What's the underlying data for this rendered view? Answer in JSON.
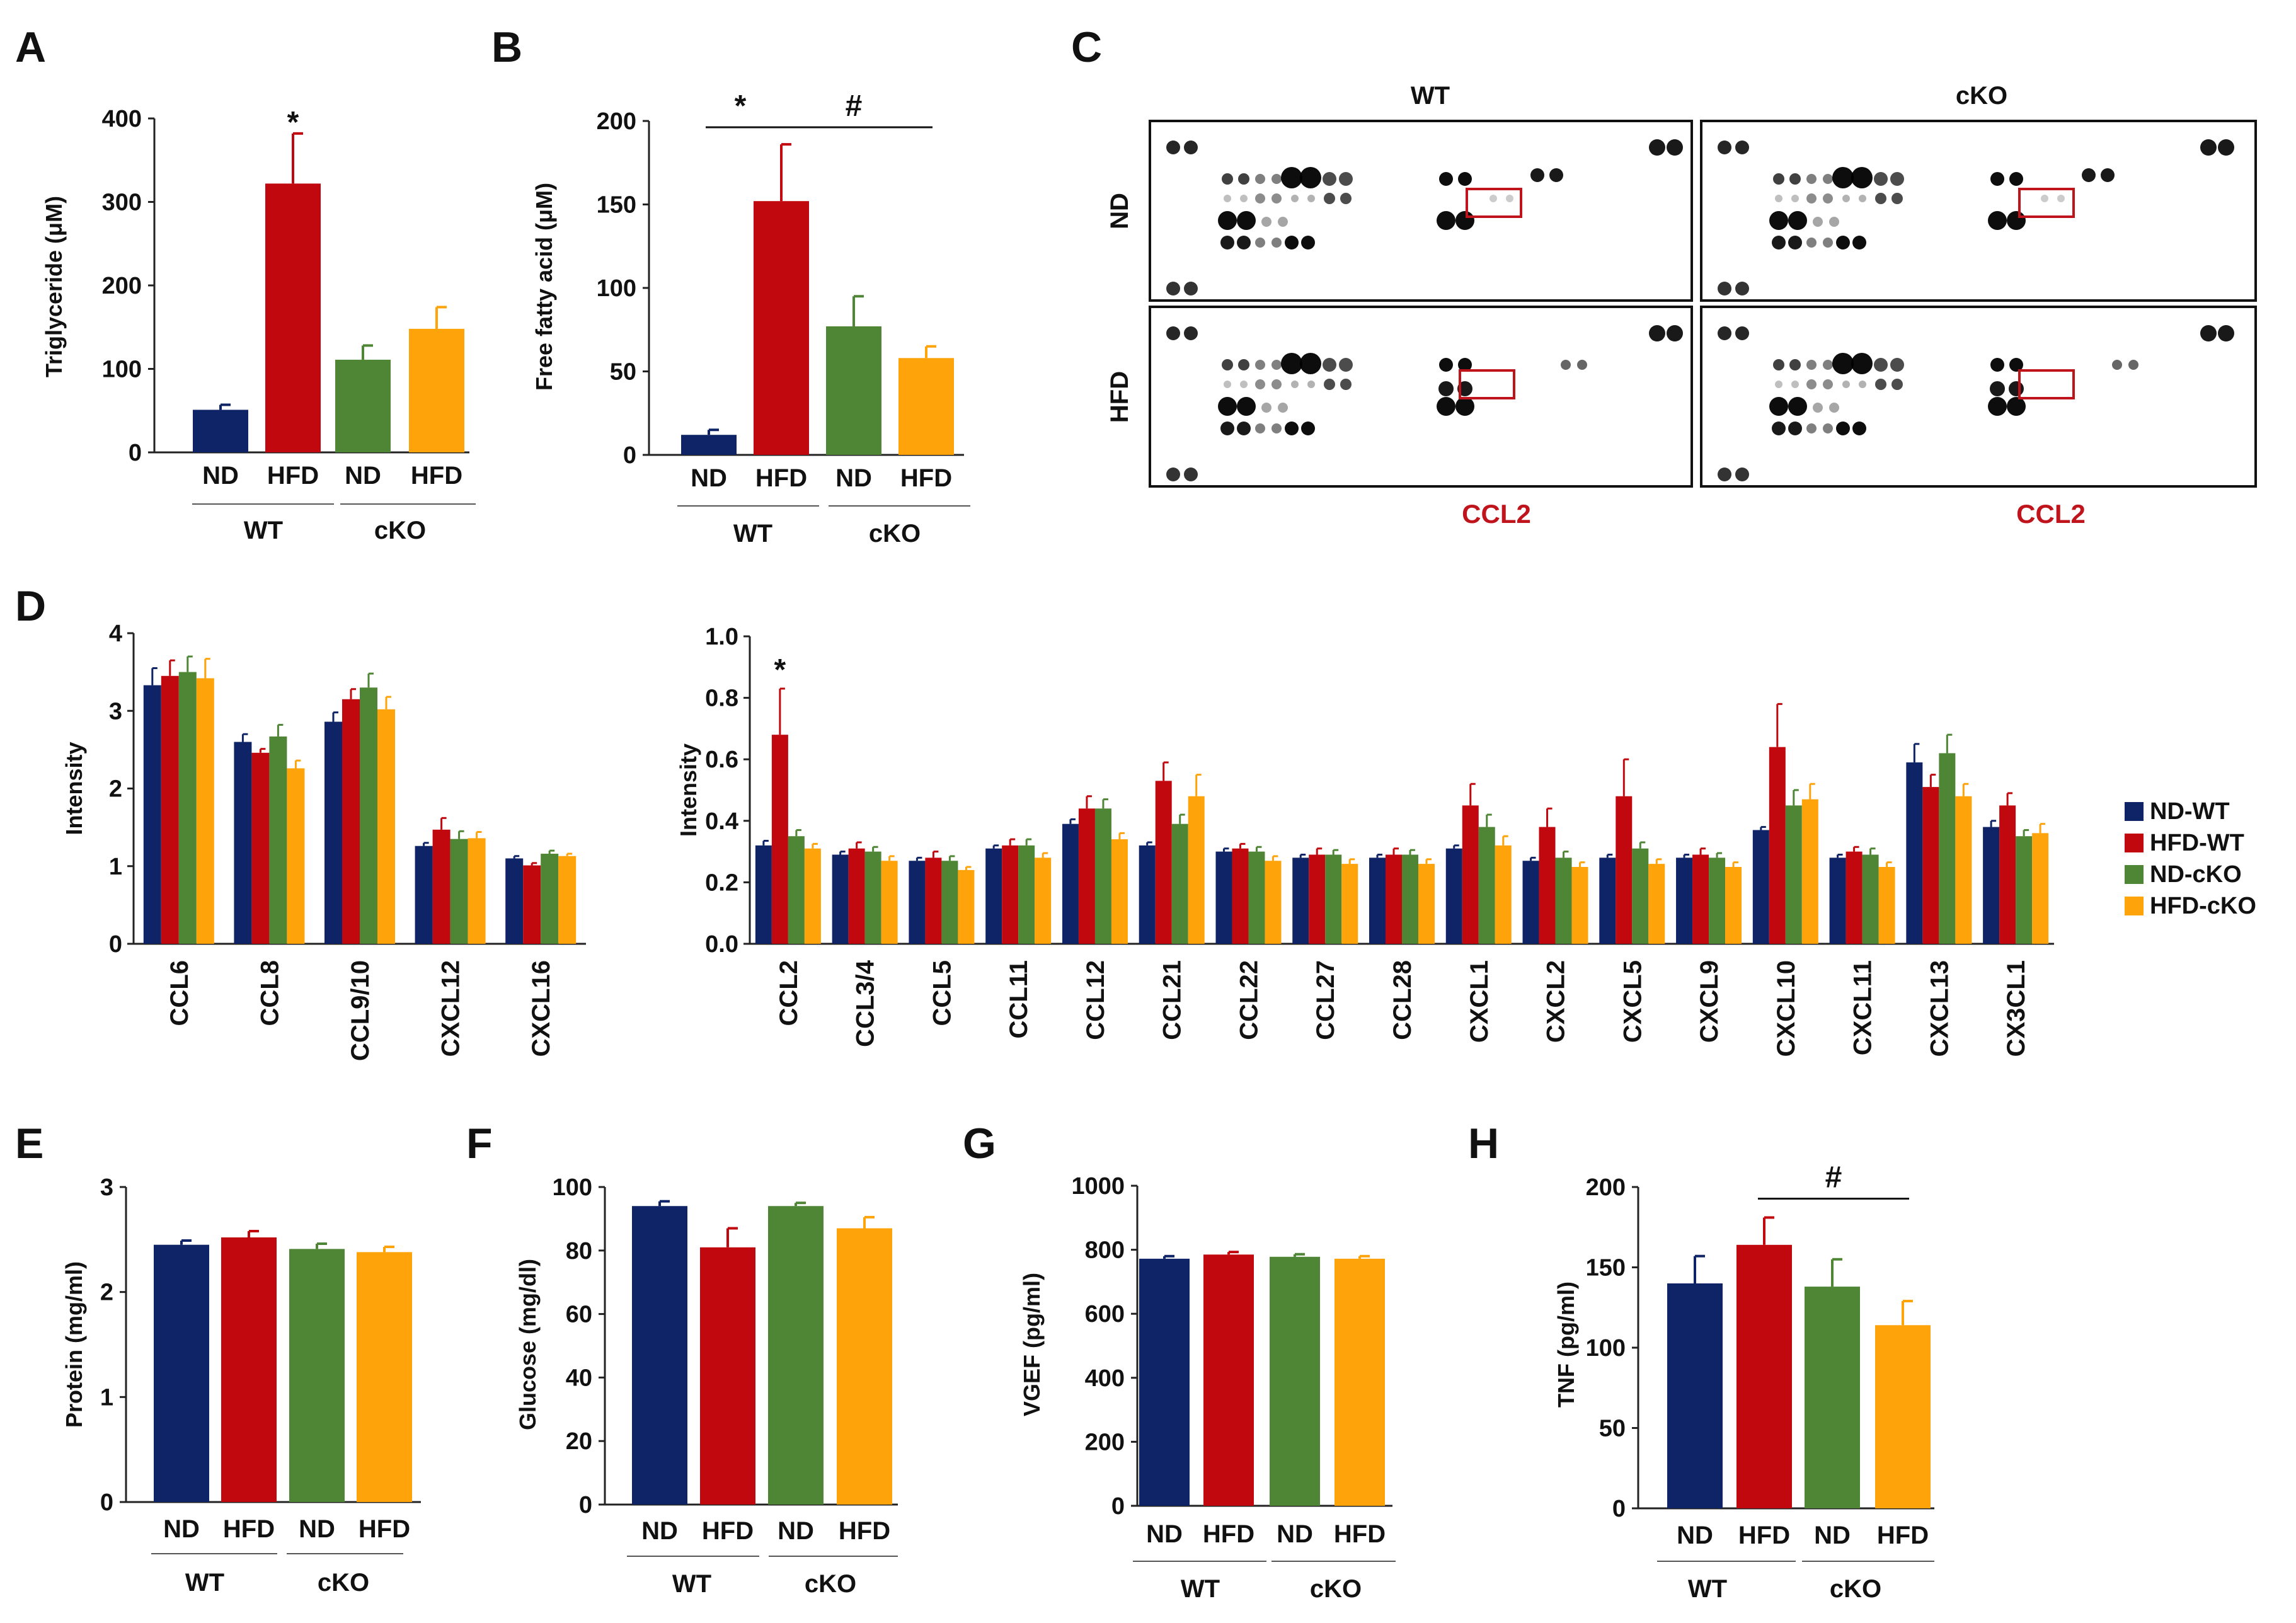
{
  "colors": {
    "nd_wt": "#0f2466",
    "hfd_wt": "#c0080e",
    "nd_cko": "#4f8636",
    "hfd_cko": "#ffa30a",
    "highlight_box": "#c0141c"
  },
  "legend": {
    "items": [
      "ND-WT",
      "HFD-WT",
      "ND-cKO",
      "HFD-cKO"
    ]
  },
  "panels": {
    "A": {
      "letter": "A"
    },
    "B": {
      "letter": "B"
    },
    "C": {
      "letter": "C"
    },
    "D": {
      "letter": "D"
    },
    "E": {
      "letter": "E"
    },
    "F": {
      "letter": "F"
    },
    "G": {
      "letter": "G"
    },
    "H": {
      "letter": "H"
    }
  },
  "blot": {
    "col_labels": [
      "WT",
      "cKO"
    ],
    "row_labels": [
      "ND",
      "HFD"
    ],
    "highlight_label": "CCL2"
  },
  "chart_data": [
    {
      "id": "A",
      "type": "bar",
      "ylabel": "Triglyceride (μM)",
      "ylim": [
        0,
        400
      ],
      "yticks": [
        "0",
        "100",
        "200",
        "300",
        "400"
      ],
      "categories": [
        "ND",
        "HFD",
        "ND",
        "HFD"
      ],
      "groups": [
        "WT",
        "cKO"
      ],
      "values": [
        51,
        322,
        111,
        148
      ],
      "errors": [
        6,
        60,
        17,
        26
      ],
      "annotations": [
        {
          "text": "*",
          "bar": 1
        }
      ]
    },
    {
      "id": "B",
      "type": "bar",
      "ylabel": "Free fatty acid (μM)",
      "ylim": [
        0,
        200
      ],
      "yticks": [
        "0",
        "50",
        "100",
        "150",
        "200"
      ],
      "categories": [
        "ND",
        "HFD",
        "ND",
        "HFD"
      ],
      "groups": [
        "WT",
        "cKO"
      ],
      "values": [
        12,
        152,
        77,
        58
      ],
      "errors": [
        3,
        34,
        18,
        7
      ],
      "annotations": [
        {
          "text": "*",
          "from": 0,
          "to": 1
        },
        {
          "text": "#",
          "from": 1,
          "to": 3
        }
      ]
    },
    {
      "id": "D1",
      "type": "bar",
      "ylabel": "Intensity",
      "ylim": [
        0,
        4
      ],
      "yticks": [
        "0",
        "1",
        "2",
        "3",
        "4"
      ],
      "categories": [
        "CCL6",
        "CCL8",
        "CCL9/10",
        "CXCL12",
        "CXCL16"
      ],
      "series": [
        {
          "name": "ND-WT",
          "values": [
            3.33,
            2.6,
            2.86,
            1.26,
            1.1
          ],
          "errors": [
            0.22,
            0.1,
            0.12,
            0.04,
            0.03
          ]
        },
        {
          "name": "HFD-WT",
          "values": [
            3.45,
            2.46,
            3.15,
            1.47,
            1.01
          ],
          "errors": [
            0.2,
            0.05,
            0.13,
            0.15,
            0.03
          ]
        },
        {
          "name": "ND-cKO",
          "values": [
            3.5,
            2.67,
            3.3,
            1.35,
            1.16
          ],
          "errors": [
            0.2,
            0.15,
            0.18,
            0.1,
            0.04
          ]
        },
        {
          "name": "HFD-cKO",
          "values": [
            3.42,
            2.26,
            3.02,
            1.36,
            1.13
          ],
          "errors": [
            0.25,
            0.1,
            0.16,
            0.08,
            0.03
          ]
        }
      ]
    },
    {
      "id": "D2",
      "type": "bar",
      "ylabel": "Intensity",
      "ylim": [
        0,
        1.0
      ],
      "yticks": [
        "0.0",
        "0.2",
        "0.4",
        "0.6",
        "0.8",
        "1.0"
      ],
      "categories": [
        "CCL2",
        "CCL3/4",
        "CCL5",
        "CCL11",
        "CCL12",
        "CCL21",
        "CCL22",
        "CCL27",
        "CCL28",
        "CXCL1",
        "CXCL2",
        "CXCL5",
        "CXCL9",
        "CXCL10",
        "CXCL11",
        "CXCL13",
        "CX3CL1"
      ],
      "series": [
        {
          "name": "ND-WT",
          "values": [
            0.32,
            0.29,
            0.27,
            0.31,
            0.39,
            0.32,
            0.3,
            0.28,
            0.28,
            0.31,
            0.27,
            0.28,
            0.28,
            0.37,
            0.28,
            0.59,
            0.38
          ],
          "errors": [
            0.015,
            0.01,
            0.01,
            0.01,
            0.015,
            0.01,
            0.01,
            0.01,
            0.01,
            0.01,
            0.01,
            0.01,
            0.01,
            0.01,
            0.01,
            0.06,
            0.02
          ]
        },
        {
          "name": "HFD-WT",
          "values": [
            0.68,
            0.31,
            0.28,
            0.32,
            0.44,
            0.53,
            0.31,
            0.29,
            0.29,
            0.45,
            0.38,
            0.48,
            0.29,
            0.64,
            0.3,
            0.51,
            0.45
          ],
          "errors": [
            0.15,
            0.02,
            0.02,
            0.02,
            0.04,
            0.06,
            0.015,
            0.02,
            0.02,
            0.07,
            0.06,
            0.12,
            0.02,
            0.14,
            0.015,
            0.04,
            0.04
          ]
        },
        {
          "name": "ND-cKO",
          "values": [
            0.35,
            0.3,
            0.27,
            0.32,
            0.44,
            0.39,
            0.3,
            0.29,
            0.29,
            0.38,
            0.28,
            0.31,
            0.28,
            0.45,
            0.29,
            0.62,
            0.35
          ],
          "errors": [
            0.02,
            0.015,
            0.015,
            0.02,
            0.03,
            0.03,
            0.015,
            0.015,
            0.015,
            0.04,
            0.02,
            0.02,
            0.015,
            0.05,
            0.02,
            0.06,
            0.02
          ]
        },
        {
          "name": "HFD-cKO",
          "values": [
            0.31,
            0.27,
            0.24,
            0.28,
            0.34,
            0.48,
            0.27,
            0.26,
            0.26,
            0.32,
            0.25,
            0.26,
            0.25,
            0.47,
            0.25,
            0.48,
            0.36
          ],
          "errors": [
            0.015,
            0.015,
            0.01,
            0.015,
            0.02,
            0.07,
            0.015,
            0.015,
            0.015,
            0.03,
            0.015,
            0.015,
            0.015,
            0.05,
            0.015,
            0.04,
            0.03
          ]
        }
      ],
      "annotations": [
        {
          "text": "*",
          "category": 0,
          "series": 1
        }
      ]
    },
    {
      "id": "E",
      "type": "bar",
      "ylabel": "Protein (mg/ml)",
      "ylim": [
        0,
        3
      ],
      "yticks": [
        "0",
        "1",
        "2",
        "3"
      ],
      "categories": [
        "ND",
        "HFD",
        "ND",
        "HFD"
      ],
      "groups": [
        "WT",
        "cKO"
      ],
      "values": [
        2.45,
        2.52,
        2.41,
        2.38
      ],
      "errors": [
        0.04,
        0.06,
        0.05,
        0.05
      ]
    },
    {
      "id": "F",
      "type": "bar",
      "ylabel": "Glucose (mg/dl)",
      "ylim": [
        0,
        100
      ],
      "yticks": [
        "0",
        "20",
        "40",
        "60",
        "80",
        "100"
      ],
      "categories": [
        "ND",
        "HFD",
        "ND",
        "HFD"
      ],
      "groups": [
        "WT",
        "cKO"
      ],
      "values": [
        94,
        81,
        94,
        87
      ],
      "errors": [
        1.5,
        6,
        1,
        3.5
      ]
    },
    {
      "id": "G",
      "type": "bar",
      "ylabel": "VGEF (pg/ml)",
      "ylim": [
        0,
        1000
      ],
      "yticks": [
        "0",
        "200",
        "400",
        "600",
        "800",
        "1000"
      ],
      "categories": [
        "ND",
        "HFD",
        "ND",
        "HFD"
      ],
      "groups": [
        "WT",
        "cKO"
      ],
      "values": [
        772,
        785,
        778,
        772
      ],
      "errors": [
        8,
        8,
        8,
        8
      ]
    },
    {
      "id": "H",
      "type": "bar",
      "ylabel": "TNF (pg/ml)",
      "ylim": [
        0,
        200
      ],
      "yticks": [
        "0",
        "50",
        "100",
        "150",
        "200"
      ],
      "categories": [
        "ND",
        "HFD",
        "ND",
        "HFD"
      ],
      "groups": [
        "WT",
        "cKO"
      ],
      "values": [
        140,
        164,
        138,
        114
      ],
      "errors": [
        17,
        17,
        17,
        15
      ],
      "annotations": [
        {
          "text": "#",
          "from": 1,
          "to": 3
        }
      ]
    }
  ]
}
